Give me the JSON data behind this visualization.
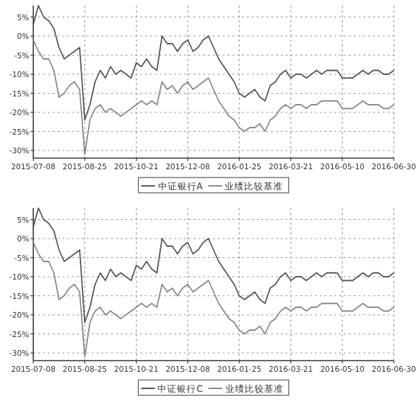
{
  "chart_data": [
    {
      "type": "line",
      "categories": [
        "2015-07-08",
        null,
        null,
        null,
        null,
        null,
        null,
        null,
        null,
        null,
        "2015-08-25",
        null,
        null,
        null,
        null,
        null,
        null,
        null,
        null,
        null,
        "2015-10-21",
        null,
        null,
        null,
        null,
        null,
        null,
        null,
        null,
        null,
        "2015-12-08",
        null,
        null,
        null,
        null,
        null,
        null,
        null,
        null,
        null,
        "2016-01-25",
        null,
        null,
        null,
        null,
        null,
        null,
        null,
        null,
        null,
        "2016-03-21",
        null,
        null,
        null,
        null,
        null,
        null,
        null,
        null,
        null,
        "2016-05-10",
        null,
        null,
        null,
        null,
        null,
        null,
        null,
        null,
        null,
        "2016-06-30"
      ],
      "series": [
        {
          "name": "中证银行A",
          "color": "#555555",
          "values": [
            3,
            8,
            5,
            4,
            2,
            -3,
            -6,
            -5,
            -4,
            -3,
            -22,
            -18,
            -12,
            -9,
            -11,
            -8,
            -10,
            -9,
            -10,
            -11,
            -7,
            -8,
            -6,
            -8,
            -9,
            0,
            -2,
            -2,
            -4,
            -2,
            -1,
            -4,
            -3,
            -1,
            0,
            -3,
            -6,
            -8,
            -10,
            -12,
            -15,
            -16,
            -15,
            -14,
            -16,
            -17,
            -13,
            -12,
            -10,
            -9,
            -11,
            -10,
            -10,
            -11,
            -10,
            -9,
            -10,
            -9,
            -9,
            -9,
            -11,
            -11,
            -11,
            -10,
            -9,
            -10,
            -9,
            -9,
            -10,
            -10,
            -9
          ]
        },
        {
          "name": "业绩比较基准",
          "color": "#888888",
          "values": [
            -1,
            -4,
            -6,
            -6,
            -9,
            -16,
            -15,
            -13,
            -12,
            -14,
            -31,
            -22,
            -19,
            -18,
            -20,
            -19,
            -20,
            -21,
            -20,
            -19,
            -18,
            -17,
            -18,
            -17,
            -18,
            -12,
            -14,
            -13,
            -15,
            -13,
            -12,
            -14,
            -13,
            -12,
            -11,
            -14,
            -17,
            -19,
            -21,
            -22,
            -24,
            -25,
            -24,
            -24,
            -23,
            -25,
            -22,
            -21,
            -19,
            -18,
            -19,
            -18,
            -18,
            -19,
            -18,
            -18,
            -17,
            -17,
            -17,
            -17,
            -19,
            -19,
            -19,
            -18,
            -17,
            -18,
            -18,
            -18,
            -19,
            -19,
            -18
          ]
        }
      ],
      "ylim": [
        -32,
        8
      ],
      "yticks": [
        {
          "value": 5,
          "label": "5%"
        },
        {
          "value": 0,
          "label": "0%"
        },
        {
          "value": -5,
          "label": "-5%"
        },
        {
          "value": -10,
          "label": "-10%"
        },
        {
          "value": -15,
          "label": "-15%"
        },
        {
          "value": -20,
          "label": "-20%"
        },
        {
          "value": -25,
          "label": "-25%"
        },
        {
          "value": -30,
          "label": "-30%"
        }
      ],
      "grid": true,
      "legend": "bottom"
    },
    {
      "type": "line",
      "categories": [
        "2015-07-08",
        null,
        null,
        null,
        null,
        null,
        null,
        null,
        null,
        null,
        "2015-08-25",
        null,
        null,
        null,
        null,
        null,
        null,
        null,
        null,
        null,
        "2015-10-21",
        null,
        null,
        null,
        null,
        null,
        null,
        null,
        null,
        null,
        "2015-12-08",
        null,
        null,
        null,
        null,
        null,
        null,
        null,
        null,
        null,
        "2016-01-25",
        null,
        null,
        null,
        null,
        null,
        null,
        null,
        null,
        null,
        "2016-03-21",
        null,
        null,
        null,
        null,
        null,
        null,
        null,
        null,
        null,
        "2016-05-10",
        null,
        null,
        null,
        null,
        null,
        null,
        null,
        null,
        null,
        "2016-06-30"
      ],
      "series": [
        {
          "name": "中证银行C",
          "color": "#555555",
          "values": [
            3,
            8,
            5,
            4,
            2,
            -3,
            -6,
            -5,
            -4,
            -3,
            -22,
            -18,
            -12,
            -9,
            -11,
            -8,
            -10,
            -9,
            -10,
            -11,
            -7,
            -8,
            -6,
            -8,
            -9,
            0,
            -2,
            -2,
            -4,
            -2,
            -1,
            -4,
            -3,
            -1,
            0,
            -3,
            -6,
            -8,
            -10,
            -12,
            -15,
            -16,
            -15,
            -14,
            -16,
            -17,
            -13,
            -12,
            -10,
            -9,
            -11,
            -10,
            -10,
            -11,
            -10,
            -9,
            -10,
            -9,
            -9,
            -9,
            -11,
            -11,
            -11,
            -10,
            -9,
            -10,
            -9,
            -9,
            -10,
            -10,
            -9
          ]
        },
        {
          "name": "业绩比较基准",
          "color": "#888888",
          "values": [
            -1,
            -4,
            -6,
            -6,
            -9,
            -16,
            -15,
            -13,
            -12,
            -14,
            -31,
            -22,
            -19,
            -18,
            -20,
            -19,
            -20,
            -21,
            -20,
            -19,
            -18,
            -17,
            -18,
            -17,
            -18,
            -12,
            -14,
            -13,
            -15,
            -13,
            -12,
            -14,
            -13,
            -12,
            -11,
            -14,
            -17,
            -19,
            -21,
            -22,
            -24,
            -25,
            -24,
            -24,
            -23,
            -25,
            -22,
            -21,
            -19,
            -18,
            -19,
            -18,
            -18,
            -19,
            -18,
            -18,
            -17,
            -17,
            -17,
            -17,
            -19,
            -19,
            -19,
            -18,
            -17,
            -18,
            -18,
            -18,
            -19,
            -19,
            -18
          ]
        }
      ],
      "ylim": [
        -32,
        8
      ],
      "yticks": [
        {
          "value": 5,
          "label": "5%"
        },
        {
          "value": 0,
          "label": "0%"
        },
        {
          "value": -5,
          "label": "-5%"
        },
        {
          "value": -10,
          "label": "-10%"
        },
        {
          "value": -15,
          "label": "-15%"
        },
        {
          "value": -20,
          "label": "-20%"
        },
        {
          "value": -25,
          "label": "-25%"
        },
        {
          "value": -30,
          "label": "-30%"
        }
      ],
      "grid": true,
      "legend": "bottom"
    }
  ]
}
